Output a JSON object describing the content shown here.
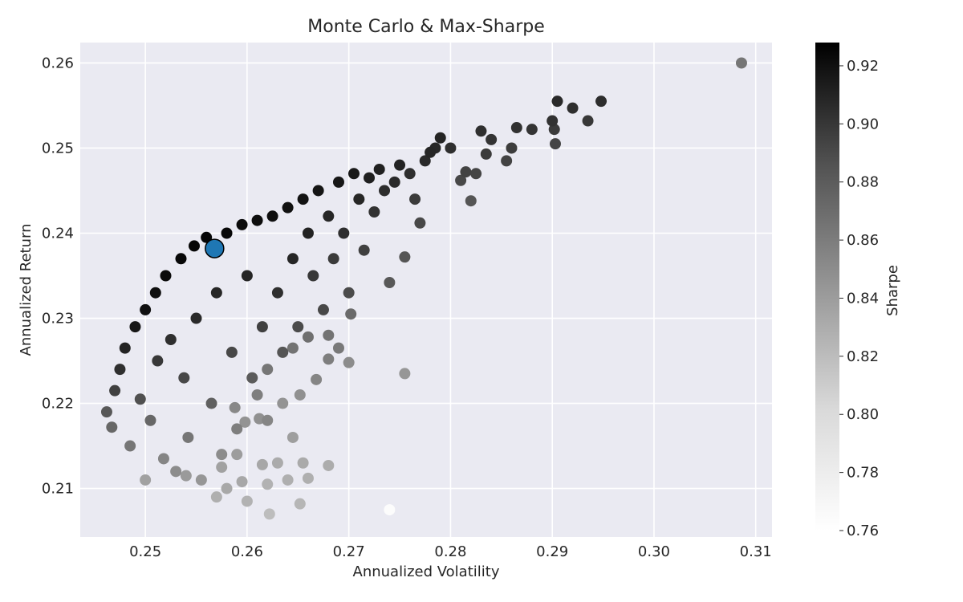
{
  "chart_data": {
    "type": "scatter",
    "title": "Monte Carlo & Max-Sharpe",
    "xlabel": "Annualized Volatility",
    "ylabel": "Annualized Return",
    "xlim": [
      0.2436,
      0.3116
    ],
    "ylim": [
      0.2043,
      0.2624
    ],
    "x_ticks": [
      0.25,
      0.26,
      0.27,
      0.28,
      0.29,
      0.3,
      0.31
    ],
    "x_tick_labels": [
      "0.25",
      "0.26",
      "0.27",
      "0.28",
      "0.29",
      "0.30",
      "0.31"
    ],
    "y_ticks": [
      0.21,
      0.22,
      0.23,
      0.24,
      0.25,
      0.26
    ],
    "y_tick_labels": [
      "0.21",
      "0.22",
      "0.23",
      "0.24",
      "0.25",
      "0.26"
    ],
    "grid": true,
    "background": "#eaeaf2",
    "colorbar": {
      "label": "Sharpe",
      "min": 0.76,
      "max": 0.928,
      "ticks": [
        0.76,
        0.78,
        0.8,
        0.82,
        0.84,
        0.86,
        0.88,
        0.9,
        0.92
      ],
      "tick_labels": [
        "0.76",
        "0.78",
        "0.80",
        "0.82",
        "0.84",
        "0.86",
        "0.88",
        "0.90",
        "0.92"
      ],
      "colormap": "Greys"
    },
    "max_sharpe": {
      "x": 0.2568,
      "y": 0.2382,
      "color": "#1f77b4"
    },
    "points": [
      [
        0.2462,
        0.219,
        0.88
      ],
      [
        0.2467,
        0.2172,
        0.87
      ],
      [
        0.247,
        0.2215,
        0.895
      ],
      [
        0.2475,
        0.224,
        0.905
      ],
      [
        0.248,
        0.2265,
        0.912
      ],
      [
        0.2485,
        0.215,
        0.86
      ],
      [
        0.249,
        0.229,
        0.918
      ],
      [
        0.2495,
        0.2205,
        0.885
      ],
      [
        0.25,
        0.231,
        0.921
      ],
      [
        0.2505,
        0.218,
        0.87
      ],
      [
        0.251,
        0.233,
        0.922
      ],
      [
        0.2512,
        0.225,
        0.9
      ],
      [
        0.2518,
        0.2135,
        0.85
      ],
      [
        0.252,
        0.235,
        0.924
      ],
      [
        0.2525,
        0.2275,
        0.905
      ],
      [
        0.253,
        0.212,
        0.845
      ],
      [
        0.2535,
        0.237,
        0.925
      ],
      [
        0.2538,
        0.223,
        0.89
      ],
      [
        0.2542,
        0.216,
        0.86
      ],
      [
        0.2548,
        0.2385,
        0.926
      ],
      [
        0.255,
        0.23,
        0.908
      ],
      [
        0.2555,
        0.211,
        0.838
      ],
      [
        0.256,
        0.2395,
        0.926
      ],
      [
        0.2565,
        0.22,
        0.875
      ],
      [
        0.257,
        0.233,
        0.91
      ],
      [
        0.2575,
        0.214,
        0.845
      ],
      [
        0.258,
        0.24,
        0.925
      ],
      [
        0.2585,
        0.226,
        0.89
      ],
      [
        0.259,
        0.217,
        0.855
      ],
      [
        0.2595,
        0.241,
        0.924
      ],
      [
        0.26,
        0.235,
        0.91
      ],
      [
        0.2605,
        0.223,
        0.878
      ],
      [
        0.261,
        0.2415,
        0.923
      ],
      [
        0.2615,
        0.229,
        0.895
      ],
      [
        0.262,
        0.218,
        0.85
      ],
      [
        0.2625,
        0.242,
        0.922
      ],
      [
        0.263,
        0.233,
        0.905
      ],
      [
        0.2635,
        0.226,
        0.882
      ],
      [
        0.264,
        0.243,
        0.921
      ],
      [
        0.2645,
        0.237,
        0.91
      ],
      [
        0.265,
        0.229,
        0.888
      ],
      [
        0.2655,
        0.244,
        0.92
      ],
      [
        0.266,
        0.24,
        0.912
      ],
      [
        0.2665,
        0.235,
        0.9
      ],
      [
        0.267,
        0.245,
        0.919
      ],
      [
        0.2675,
        0.231,
        0.89
      ],
      [
        0.268,
        0.242,
        0.91
      ],
      [
        0.2685,
        0.237,
        0.898
      ],
      [
        0.269,
        0.246,
        0.918
      ],
      [
        0.2695,
        0.24,
        0.905
      ],
      [
        0.27,
        0.233,
        0.888
      ],
      [
        0.2705,
        0.247,
        0.917
      ],
      [
        0.271,
        0.244,
        0.91
      ],
      [
        0.2715,
        0.238,
        0.895
      ],
      [
        0.272,
        0.2465,
        0.914
      ],
      [
        0.2725,
        0.2425,
        0.903
      ],
      [
        0.273,
        0.2475,
        0.913
      ],
      [
        0.2735,
        0.245,
        0.906
      ],
      [
        0.274,
        0.2342,
        0.88
      ],
      [
        0.2745,
        0.246,
        0.908
      ],
      [
        0.275,
        0.248,
        0.912
      ],
      [
        0.2755,
        0.2372,
        0.882
      ],
      [
        0.276,
        0.247,
        0.905
      ],
      [
        0.2765,
        0.244,
        0.898
      ],
      [
        0.277,
        0.2412,
        0.89
      ],
      [
        0.2775,
        0.2485,
        0.908
      ],
      [
        0.278,
        0.2495,
        0.91
      ],
      [
        0.2785,
        0.25,
        0.909
      ],
      [
        0.279,
        0.2512,
        0.911
      ],
      [
        0.28,
        0.25,
        0.905
      ],
      [
        0.281,
        0.2462,
        0.89
      ],
      [
        0.2815,
        0.2472,
        0.893
      ],
      [
        0.282,
        0.2438,
        0.882
      ],
      [
        0.2825,
        0.247,
        0.892
      ],
      [
        0.283,
        0.252,
        0.905
      ],
      [
        0.2835,
        0.2493,
        0.898
      ],
      [
        0.284,
        0.251,
        0.902
      ],
      [
        0.2855,
        0.2485,
        0.893
      ],
      [
        0.286,
        0.25,
        0.897
      ],
      [
        0.2865,
        0.2524,
        0.904
      ],
      [
        0.288,
        0.2522,
        0.902
      ],
      [
        0.29,
        0.2532,
        0.903
      ],
      [
        0.2902,
        0.2522,
        0.898
      ],
      [
        0.2903,
        0.2505,
        0.892
      ],
      [
        0.2905,
        0.2555,
        0.908
      ],
      [
        0.292,
        0.2547,
        0.905
      ],
      [
        0.2935,
        0.2532,
        0.9
      ],
      [
        0.2948,
        0.2555,
        0.906
      ],
      [
        0.3086,
        0.26,
        0.86
      ],
      [
        0.25,
        0.211,
        0.83
      ],
      [
        0.254,
        0.2115,
        0.835
      ],
      [
        0.258,
        0.21,
        0.825
      ],
      [
        0.26,
        0.2085,
        0.818
      ],
      [
        0.2622,
        0.207,
        0.81
      ],
      [
        0.2652,
        0.2082,
        0.815
      ],
      [
        0.264,
        0.211,
        0.82
      ],
      [
        0.263,
        0.213,
        0.823
      ],
      [
        0.262,
        0.2105,
        0.818
      ],
      [
        0.266,
        0.2112,
        0.82
      ],
      [
        0.268,
        0.2127,
        0.822
      ],
      [
        0.2655,
        0.213,
        0.824
      ],
      [
        0.2615,
        0.2128,
        0.826
      ],
      [
        0.2645,
        0.216,
        0.832
      ],
      [
        0.259,
        0.214,
        0.833
      ],
      [
        0.2595,
        0.2108,
        0.825
      ],
      [
        0.2575,
        0.2125,
        0.83
      ],
      [
        0.257,
        0.209,
        0.82
      ],
      [
        0.27,
        0.2248,
        0.845
      ],
      [
        0.2755,
        0.2235,
        0.838
      ],
      [
        0.274,
        0.2075,
        0.762
      ],
      [
        0.2652,
        0.221,
        0.842
      ],
      [
        0.2635,
        0.22,
        0.84
      ],
      [
        0.2612,
        0.2182,
        0.842
      ],
      [
        0.2598,
        0.2178,
        0.84
      ],
      [
        0.2588,
        0.2195,
        0.848
      ],
      [
        0.2668,
        0.2228,
        0.85
      ],
      [
        0.268,
        0.2252,
        0.855
      ],
      [
        0.269,
        0.2265,
        0.858
      ],
      [
        0.2702,
        0.2305,
        0.868
      ],
      [
        0.268,
        0.228,
        0.862
      ],
      [
        0.266,
        0.2278,
        0.865
      ],
      [
        0.2645,
        0.2265,
        0.862
      ],
      [
        0.262,
        0.224,
        0.86
      ],
      [
        0.261,
        0.221,
        0.855
      ]
    ]
  }
}
